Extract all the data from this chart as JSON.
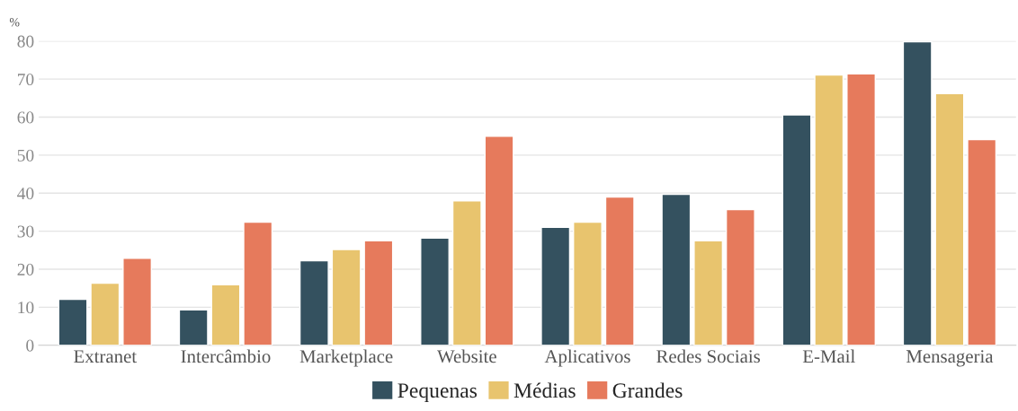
{
  "chart_data": {
    "type": "bar",
    "ylabel": "%",
    "categories": [
      "Extranet",
      "Intercâmbio",
      "Marketplace",
      "Website",
      "Aplicativos",
      "Redes Sociais",
      "E-Mail",
      "Mensageria"
    ],
    "series": [
      {
        "name": "Pequenas",
        "color": "#34515f",
        "values": [
          12.1,
          9.3,
          22.2,
          28.2,
          31.0,
          39.7,
          60.6,
          79.8
        ]
      },
      {
        "name": "Médias",
        "color": "#e8c46e",
        "values": [
          16.3,
          15.9,
          25.2,
          38.0,
          32.4,
          27.5,
          71.1,
          66.2
        ]
      },
      {
        "name": "Grandes",
        "color": "#e67a5c",
        "values": [
          22.9,
          32.4,
          27.5,
          55.0,
          39.0,
          35.7,
          71.4,
          54.1
        ]
      }
    ],
    "ylim": [
      0,
      80
    ],
    "yticks": [
      0,
      10,
      20,
      30,
      40,
      50,
      60,
      70,
      80
    ],
    "grid": "y",
    "legend": "bottom"
  }
}
